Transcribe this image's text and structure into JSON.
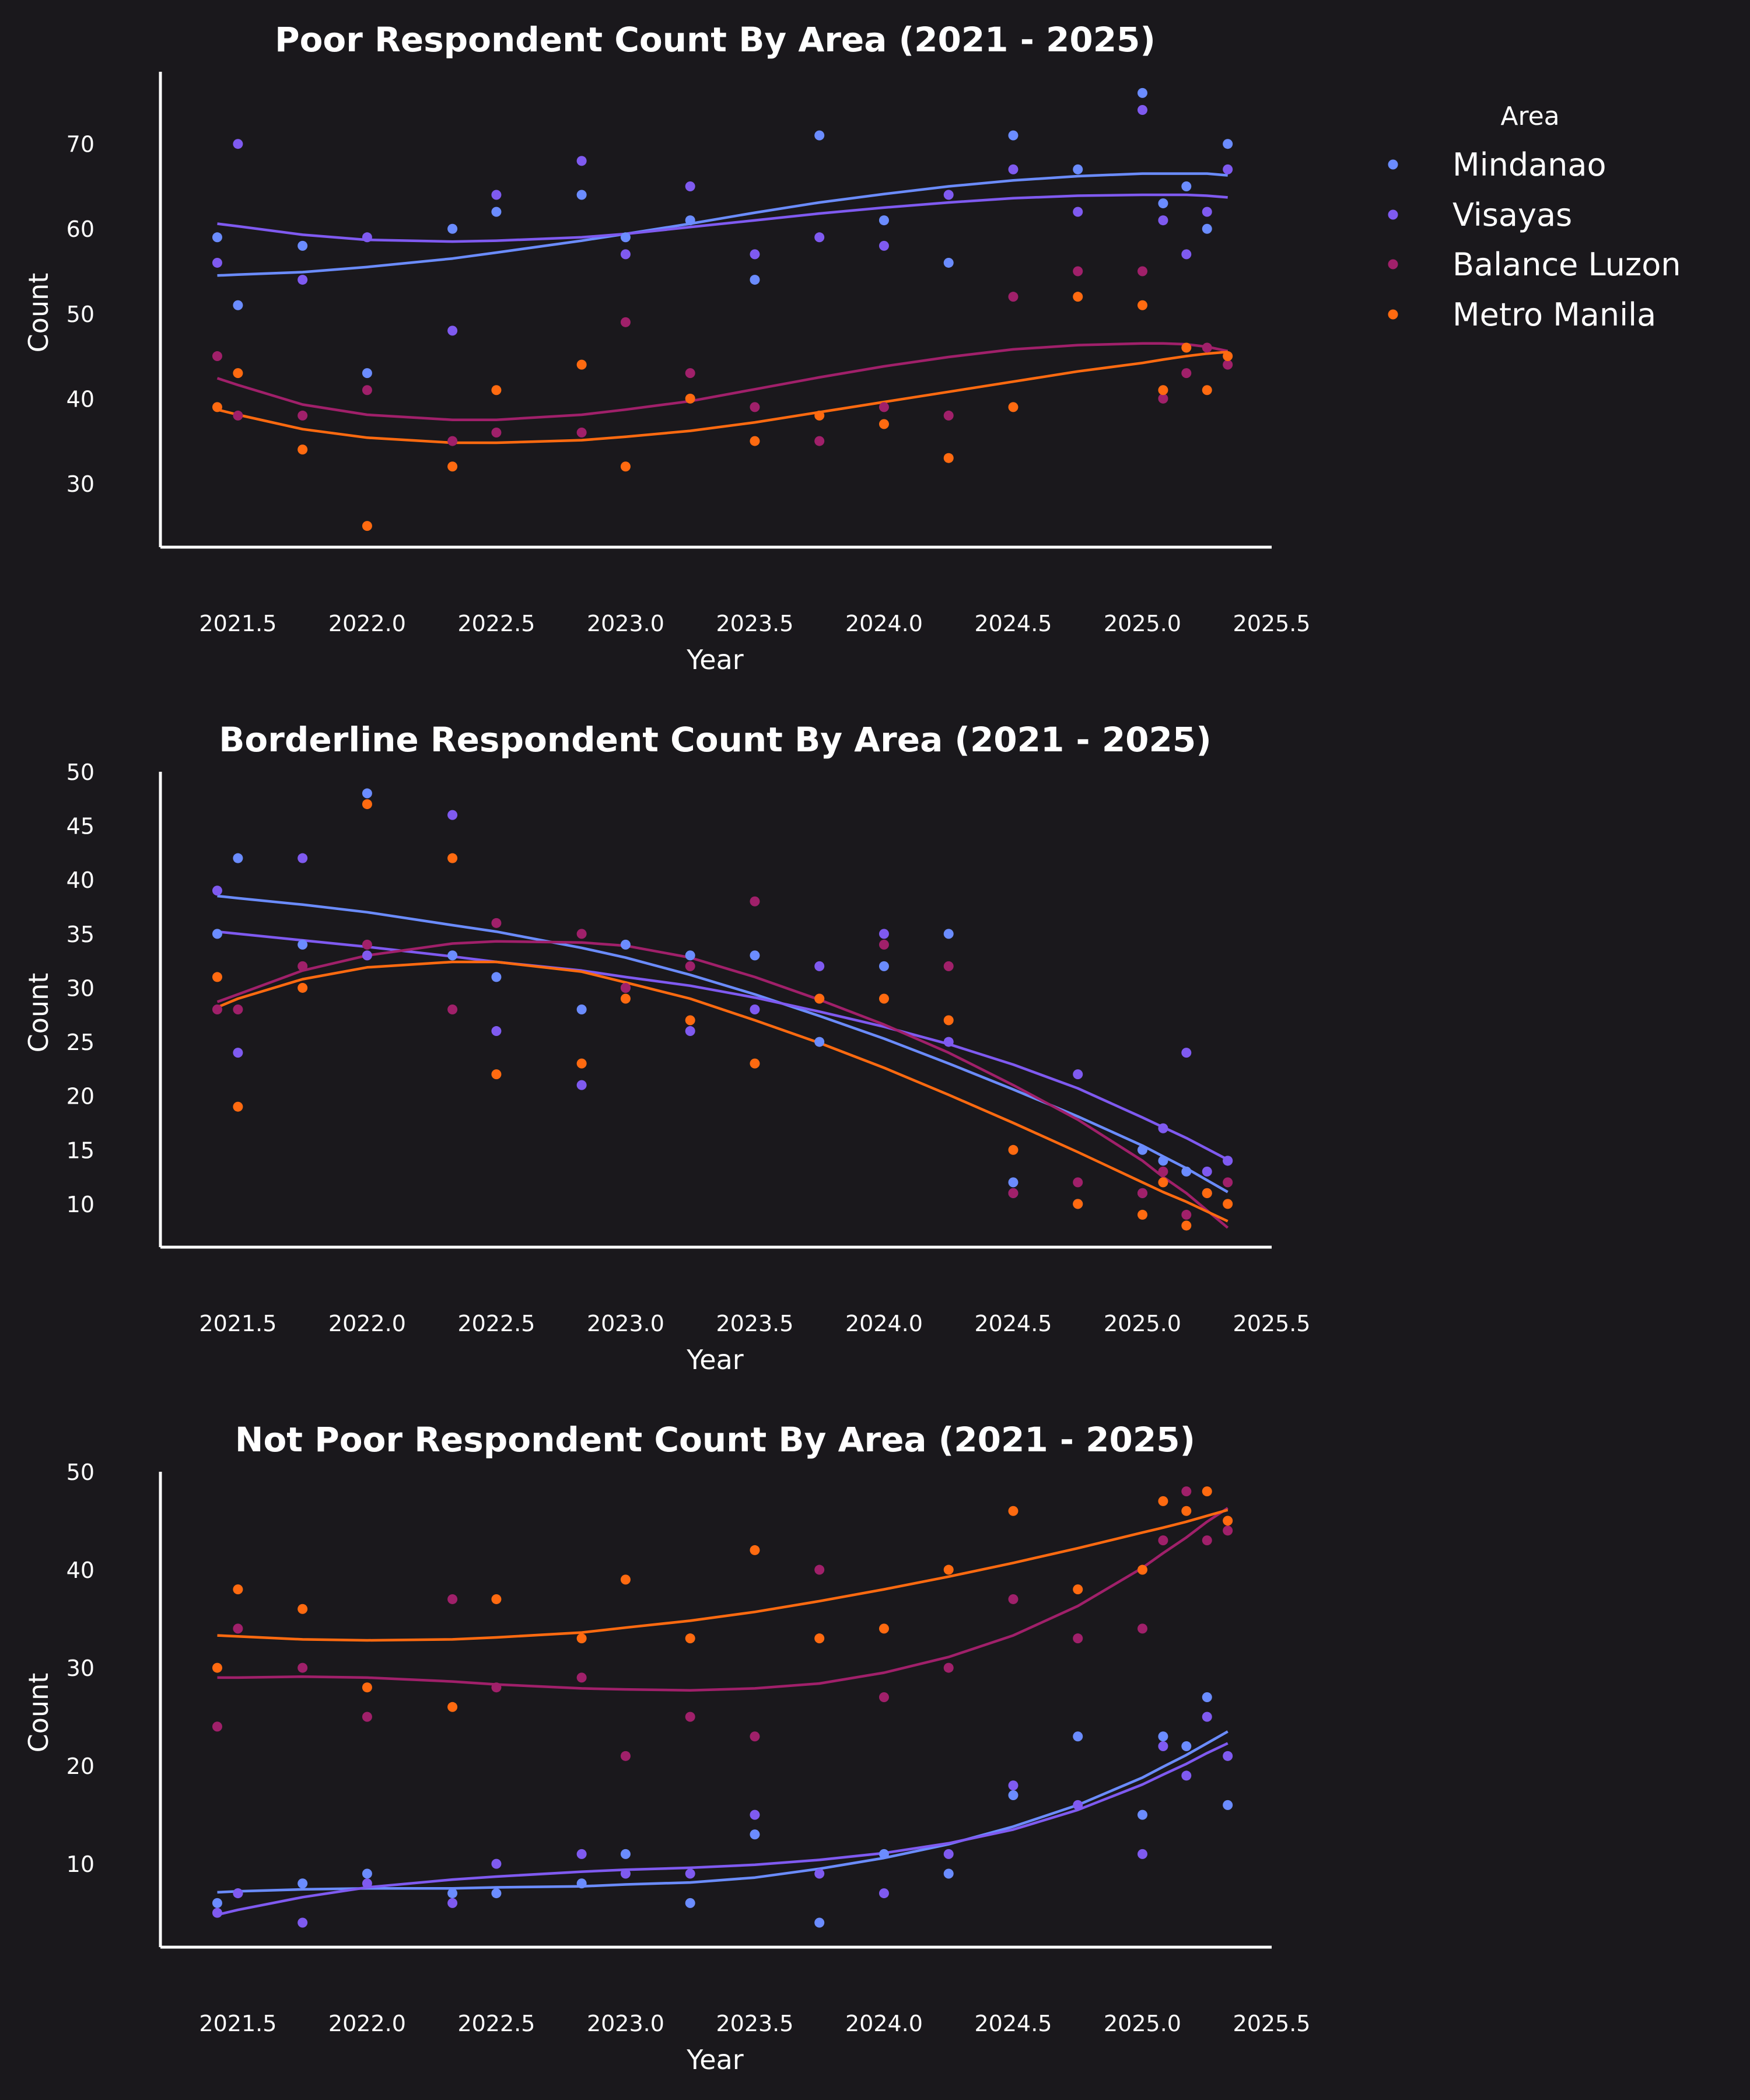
{
  "legend": {
    "title": "Area",
    "entries": [
      "Mindanao",
      "Visayas",
      "Balance Luzon",
      "Metro Manila"
    ]
  },
  "colors": {
    "Mindanao": "#6b8cff",
    "Visayas": "#7f5af0",
    "Balance Luzon": "#a0206a",
    "Metro Manila": "#ff6a10",
    "background": "#1a181c",
    "axis": "#ffffff"
  },
  "chart_data": [
    {
      "type": "scatter",
      "title": "Poor Respondent Count By Area (2021 - 2025)",
      "xlabel": "Year",
      "ylabel": "Count",
      "xlim": [
        2021.2,
        2025.5
      ],
      "ylim": [
        22.5,
        78.5
      ],
      "xticks": [
        "2021.5",
        "2022.0",
        "2022.5",
        "2023.0",
        "2023.5",
        "2024.0",
        "2024.5",
        "2025.0",
        "2025.5"
      ],
      "yticks": [
        "30",
        "40",
        "50",
        "60",
        "70"
      ],
      "x": [
        2021.42,
        2021.5,
        2021.75,
        2022.0,
        2022.33,
        2022.5,
        2022.83,
        2023.0,
        2023.25,
        2023.5,
        2023.75,
        2024.0,
        2024.25,
        2024.5,
        2024.75,
        2025.0,
        2025.08,
        2025.17,
        2025.25,
        2025.33
      ],
      "series": [
        {
          "name": "Mindanao",
          "values": [
            59,
            51,
            58,
            43,
            60,
            62,
            64,
            59,
            61,
            54,
            71,
            61,
            56,
            71,
            67,
            76,
            63,
            65,
            60,
            70
          ],
          "trend": [
            54.5,
            54.6,
            54.9,
            55.5,
            56.5,
            57.2,
            58.6,
            59.4,
            60.6,
            61.9,
            63.1,
            64.1,
            65.0,
            65.7,
            66.2,
            66.5,
            66.5,
            66.5,
            66.5,
            66.3
          ]
        },
        {
          "name": "Visayas",
          "values": [
            56,
            70,
            54,
            59,
            48,
            64,
            68,
            57,
            65,
            57,
            59,
            58,
            64,
            67,
            62,
            74,
            61,
            57,
            62,
            67
          ],
          "trend": [
            60.6,
            60.3,
            59.3,
            58.7,
            58.5,
            58.6,
            59.0,
            59.4,
            60.2,
            61.0,
            61.8,
            62.5,
            63.1,
            63.6,
            63.9,
            64.0,
            64.0,
            64.0,
            63.9,
            63.7
          ]
        },
        {
          "name": "Balance Luzon",
          "values": [
            45,
            38,
            38,
            41,
            35,
            36,
            36,
            49,
            43,
            39,
            35,
            39,
            38,
            52,
            55,
            55,
            40,
            43,
            46,
            44
          ],
          "trend": [
            42.4,
            41.6,
            39.3,
            38.1,
            37.5,
            37.5,
            38.1,
            38.7,
            39.7,
            41.1,
            42.5,
            43.8,
            44.9,
            45.8,
            46.3,
            46.5,
            46.5,
            46.4,
            46.1,
            45.6
          ]
        },
        {
          "name": "Metro Manila",
          "values": [
            39,
            43,
            34,
            25,
            32,
            41,
            44,
            32,
            40,
            35,
            38,
            37,
            33,
            39,
            52,
            51,
            41,
            46,
            41,
            45
          ],
          "trend": [
            38.7,
            38.1,
            36.4,
            35.4,
            34.8,
            34.8,
            35.1,
            35.5,
            36.2,
            37.2,
            38.4,
            39.6,
            40.8,
            42.0,
            43.2,
            44.2,
            44.6,
            45.0,
            45.3,
            45.5
          ]
        }
      ]
    },
    {
      "type": "scatter",
      "title": "Borderline Respondent Count By Area (2021 - 2025)",
      "xlabel": "Year",
      "ylabel": "Count",
      "xlim": [
        2021.2,
        2025.5
      ],
      "ylim": [
        6,
        50
      ],
      "xticks": [
        "2021.5",
        "2022.0",
        "2022.5",
        "2023.0",
        "2023.5",
        "2024.0",
        "2024.5",
        "2025.0",
        "2025.5"
      ],
      "yticks": [
        "10",
        "15",
        "20",
        "25",
        "30",
        "35",
        "40",
        "45",
        "50"
      ],
      "x": [
        2021.42,
        2021.5,
        2021.75,
        2022.0,
        2022.33,
        2022.5,
        2022.83,
        2023.0,
        2023.25,
        2023.5,
        2023.75,
        2024.0,
        2024.25,
        2024.5,
        2024.75,
        2025.0,
        2025.08,
        2025.17,
        2025.25,
        2025.33
      ],
      "series": [
        {
          "name": "Mindanao",
          "values": [
            35,
            42,
            34,
            48,
            33,
            31,
            28,
            34,
            33,
            33,
            25,
            32,
            35,
            12,
            10,
            15,
            14,
            13,
            11,
            14
          ],
          "trend": [
            38.5,
            38.3,
            37.7,
            37.0,
            35.8,
            35.2,
            33.7,
            32.8,
            31.2,
            29.4,
            27.4,
            25.3,
            23.0,
            20.6,
            18.1,
            15.4,
            14.4,
            13.3,
            12.2,
            11.1
          ]
        },
        {
          "name": "Visayas",
          "values": [
            39,
            24,
            42,
            33,
            46,
            26,
            21,
            30,
            26,
            28,
            32,
            35,
            25,
            11,
            22,
            11,
            17,
            24,
            13,
            14
          ],
          "trend": [
            35.2,
            35.0,
            34.4,
            33.8,
            32.9,
            32.4,
            31.6,
            31.0,
            30.2,
            29.1,
            27.8,
            26.4,
            24.8,
            22.9,
            20.7,
            18.0,
            17.1,
            16.1,
            15.1,
            14.1
          ]
        },
        {
          "name": "Balance Luzon",
          "values": [
            28,
            28,
            32,
            34,
            28,
            36,
            35,
            30,
            32,
            38,
            29,
            34,
            32,
            11,
            12,
            11,
            13,
            9,
            11,
            12
          ],
          "trend": [
            28.7,
            29.4,
            31.6,
            33.0,
            34.1,
            34.3,
            34.2,
            33.9,
            32.8,
            31.0,
            28.9,
            26.6,
            24.0,
            21.0,
            17.8,
            14.0,
            12.5,
            11.0,
            9.4,
            7.8
          ]
        },
        {
          "name": "Metro Manila",
          "values": [
            31,
            19,
            30,
            47,
            42,
            22,
            23,
            29,
            27,
            23,
            29,
            29,
            27,
            15,
            10,
            9,
            12,
            8,
            11,
            10
          ],
          "trend": [
            28.2,
            29.0,
            30.8,
            31.9,
            32.4,
            32.4,
            31.5,
            30.5,
            29.0,
            27.0,
            24.9,
            22.6,
            20.1,
            17.5,
            14.8,
            12.0,
            11.1,
            10.2,
            9.3,
            8.4
          ]
        }
      ]
    },
    {
      "type": "scatter",
      "title": "Not Poor Respondent Count By Area (2021 - 2025)",
      "xlabel": "Year",
      "ylabel": "Count",
      "xlim": [
        2021.2,
        2025.5
      ],
      "ylim": [
        1.5,
        50
      ],
      "xticks": [
        "2021.5",
        "2022.0",
        "2022.5",
        "2023.0",
        "2023.5",
        "2024.0",
        "2024.5",
        "2025.0",
        "2025.5"
      ],
      "yticks": [
        "10",
        "20",
        "30",
        "40",
        "50"
      ],
      "x": [
        2021.42,
        2021.5,
        2021.75,
        2022.0,
        2022.33,
        2022.5,
        2022.83,
        2023.0,
        2023.25,
        2023.5,
        2023.75,
        2024.0,
        2024.25,
        2024.5,
        2024.75,
        2025.0,
        2025.08,
        2025.17,
        2025.25,
        2025.33
      ],
      "series": [
        {
          "name": "Mindanao",
          "values": [
            6,
            7,
            8,
            9,
            7,
            7,
            8,
            11,
            6,
            13,
            4,
            11,
            9,
            17,
            23,
            15,
            23,
            22,
            27,
            16
          ],
          "trend": [
            7.1,
            7.2,
            7.4,
            7.5,
            7.5,
            7.6,
            7.7,
            7.9,
            8.1,
            8.6,
            9.5,
            10.6,
            12.0,
            13.8,
            16.0,
            18.8,
            19.9,
            21.1,
            22.3,
            23.5
          ]
        },
        {
          "name": "Visayas",
          "values": [
            5,
            7,
            4,
            8,
            6,
            10,
            11,
            9,
            9,
            15,
            9,
            7,
            11,
            18,
            16,
            11,
            22,
            19,
            25,
            21
          ],
          "trend": [
            4.8,
            5.3,
            6.6,
            7.6,
            8.4,
            8.7,
            9.2,
            9.4,
            9.6,
            9.9,
            10.4,
            11.1,
            12.1,
            13.5,
            15.5,
            18.1,
            19.1,
            20.2,
            21.3,
            22.3
          ]
        },
        {
          "name": "Balance Luzon",
          "values": [
            24,
            34,
            30,
            25,
            37,
            28,
            29,
            21,
            25,
            23,
            40,
            27,
            30,
            37,
            33,
            34,
            43,
            48,
            43,
            44
          ],
          "trend": [
            29.0,
            29.0,
            29.1,
            29.0,
            28.6,
            28.3,
            27.9,
            27.8,
            27.7,
            27.9,
            28.4,
            29.5,
            31.1,
            33.3,
            36.3,
            40.2,
            41.7,
            43.3,
            44.9,
            46.3
          ]
        },
        {
          "name": "Metro Manila",
          "values": [
            30,
            38,
            36,
            28,
            26,
            37,
            33,
            39,
            33,
            42,
            33,
            34,
            40,
            46,
            38,
            40,
            47,
            46,
            48,
            45
          ],
          "trend": [
            33.3,
            33.2,
            32.9,
            32.8,
            32.9,
            33.1,
            33.6,
            34.1,
            34.8,
            35.7,
            36.8,
            38.0,
            39.3,
            40.7,
            42.2,
            43.8,
            44.3,
            44.9,
            45.5,
            46.1
          ]
        }
      ]
    }
  ]
}
